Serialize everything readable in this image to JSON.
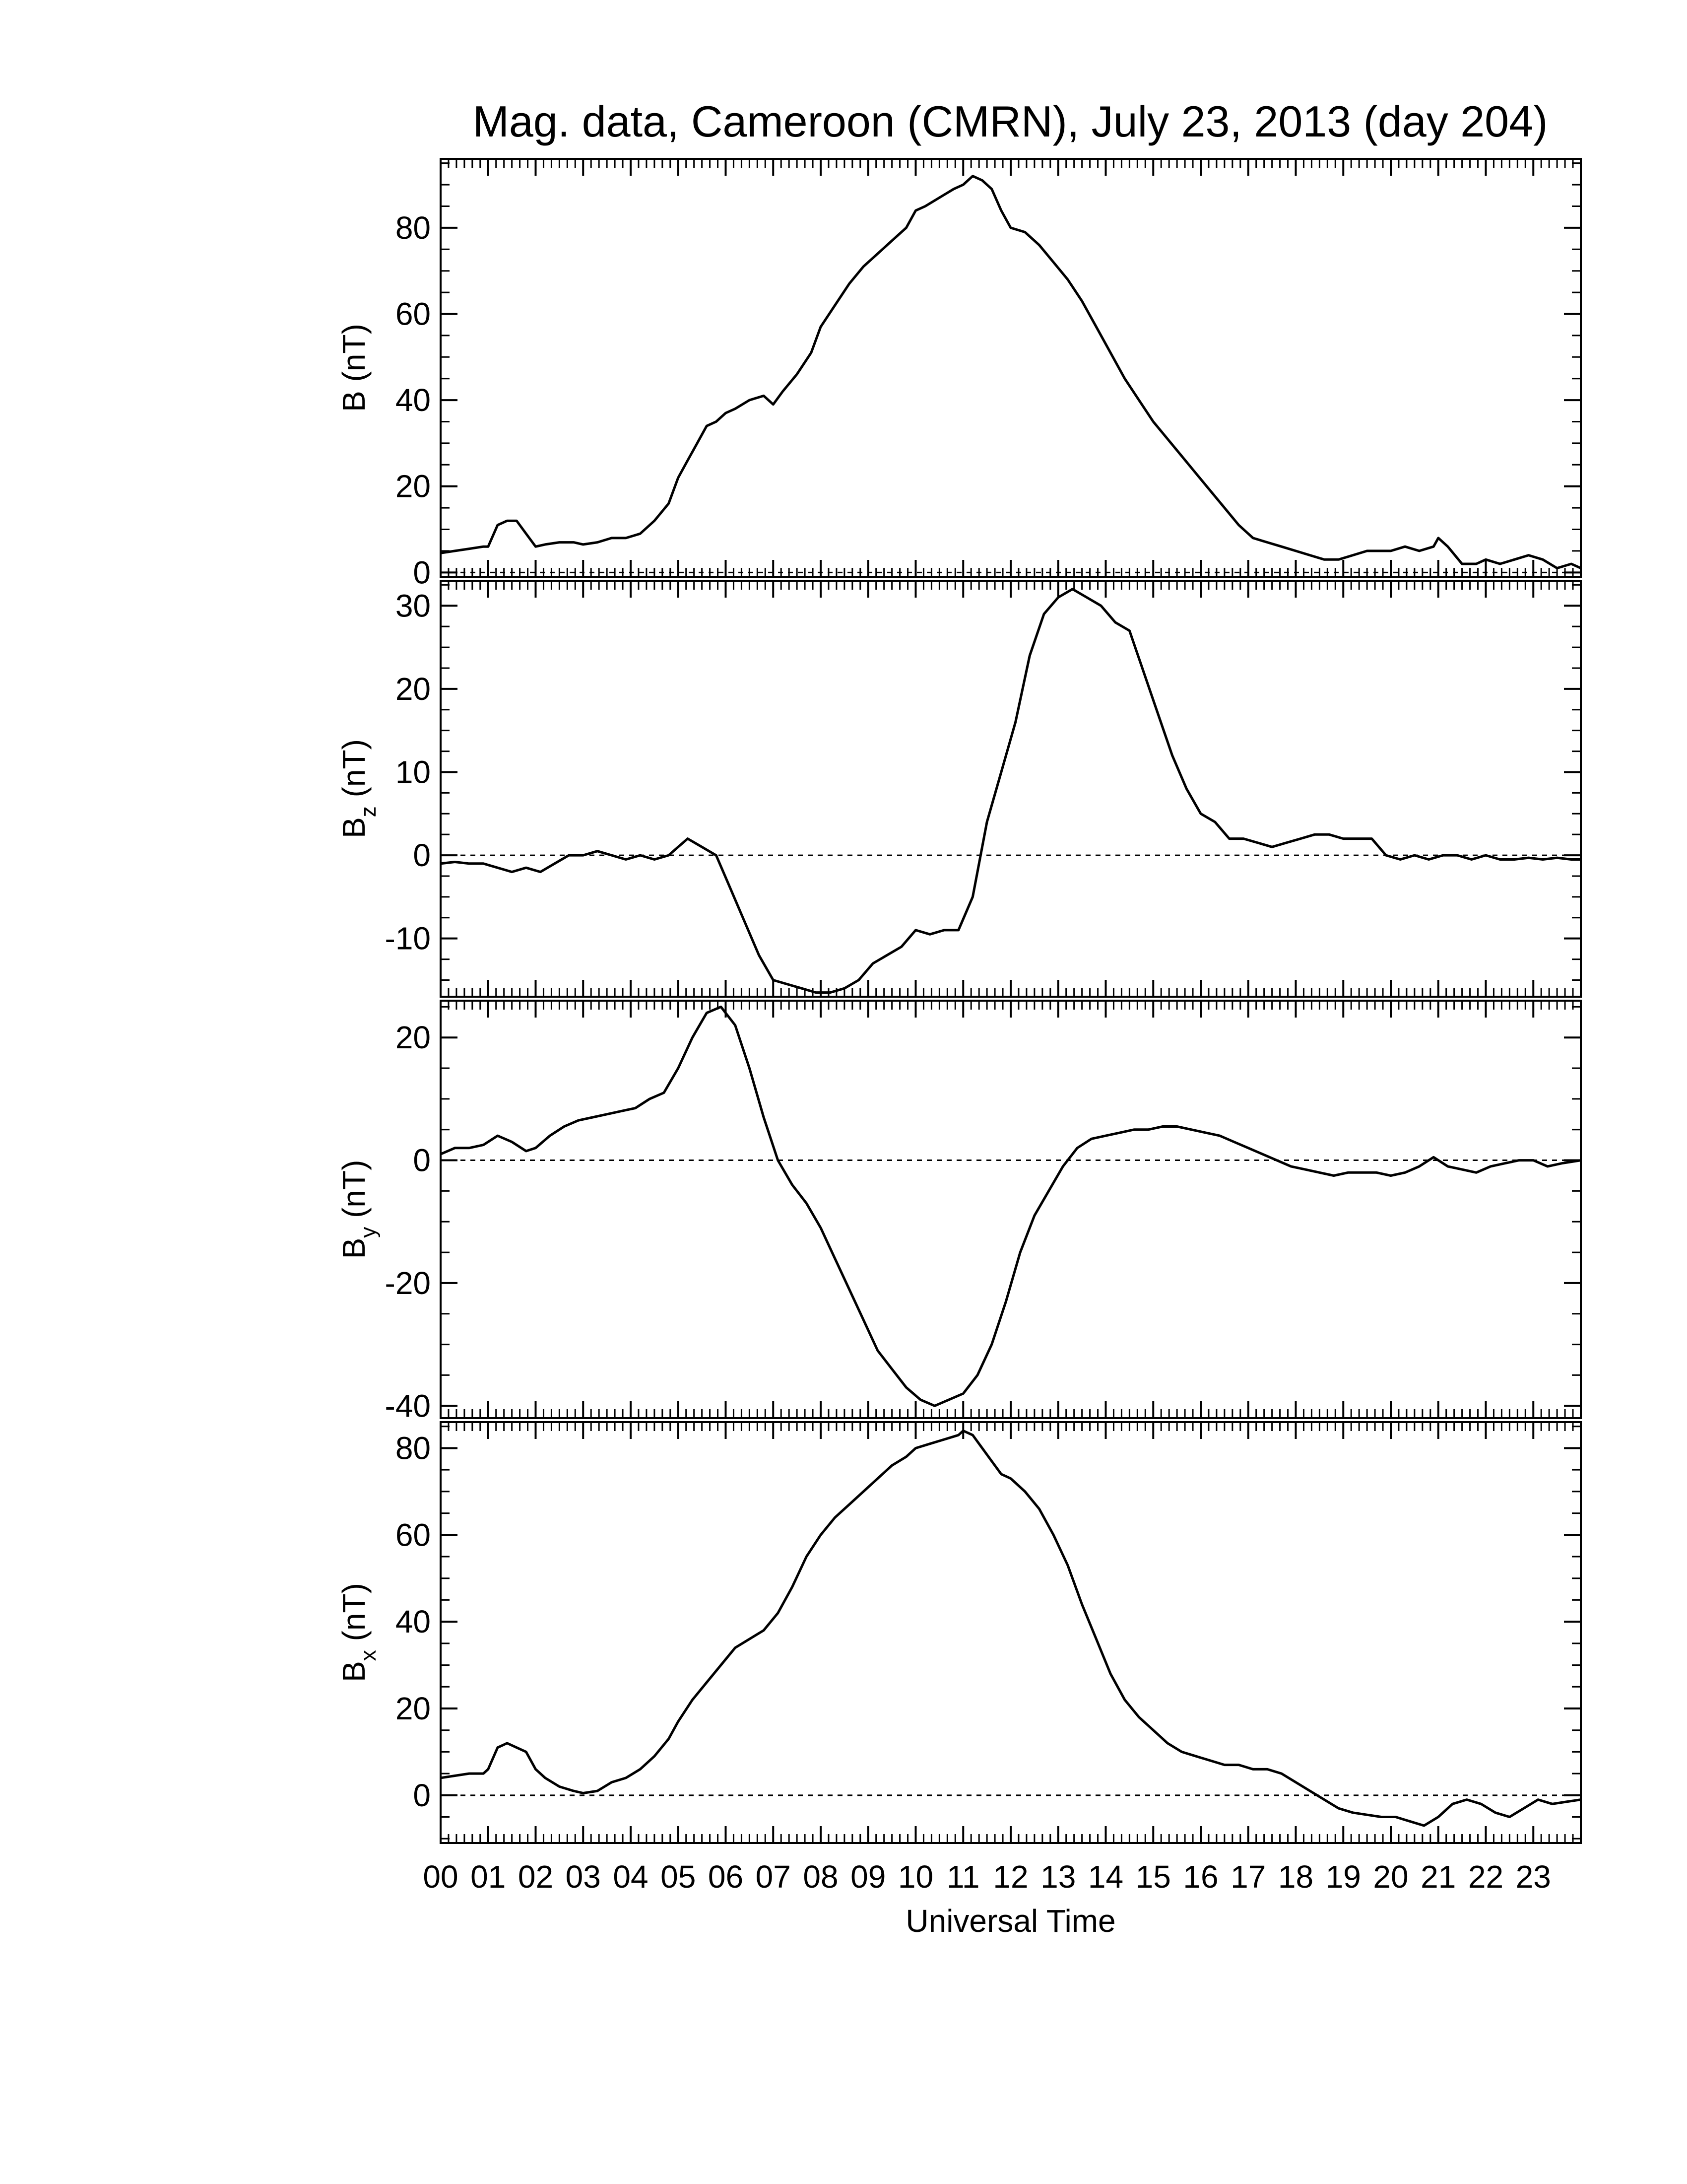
{
  "title": "Mag. data, Cameroon (CMRN), July 23, 2013 (day 204)",
  "chart_data": [
    {
      "type": "line",
      "title": "Mag. data, Cameroon (CMRN), July 23, 2013 (day 204)",
      "xlabel": "Universal Time",
      "ylabel": "B (nT)",
      "ylabel_main": "B",
      "ylabel_sub": "",
      "ylabel_unit": "(nT)",
      "xlim": [
        0,
        24
      ],
      "ylim": [
        -1,
        96
      ],
      "yticks": [
        0,
        20,
        40,
        60,
        80
      ],
      "ytick_labels": [
        "0",
        "20",
        "40",
        "60",
        "80"
      ],
      "zero_line": true,
      "series": [
        {
          "x": [
            0.0,
            0.3,
            0.6,
            0.9,
            1.0,
            1.2,
            1.4,
            1.6,
            1.8,
            2.0,
            2.2,
            2.5,
            2.8,
            3.0,
            3.3,
            3.6,
            3.9,
            4.2,
            4.5,
            4.8,
            5.0,
            5.2,
            5.4,
            5.6,
            5.8,
            6.0,
            6.2,
            6.5,
            6.8,
            7.0,
            7.2,
            7.5,
            7.8,
            8.0,
            8.3,
            8.6,
            8.9,
            9.2,
            9.5,
            9.8,
            10.0,
            10.2,
            10.5,
            10.8,
            11.0,
            11.2,
            11.4,
            11.6,
            11.8,
            12.0,
            12.3,
            12.6,
            12.9,
            13.2,
            13.5,
            13.8,
            14.1,
            14.4,
            14.7,
            15.0,
            15.3,
            15.6,
            15.9,
            16.2,
            16.5,
            16.8,
            17.1,
            17.4,
            17.7,
            18.0,
            18.3,
            18.6,
            18.9,
            19.2,
            19.5,
            19.8,
            20.0,
            20.3,
            20.6,
            20.9,
            21.0,
            21.2,
            21.5,
            21.8,
            22.0,
            22.3,
            22.6,
            22.9,
            23.2,
            23.5,
            23.8,
            24.0
          ],
          "values": [
            4.5,
            5,
            5.5,
            6,
            6,
            11,
            12,
            12,
            9,
            6,
            6.5,
            7,
            7,
            6.5,
            7,
            8,
            8,
            9,
            12,
            16,
            22,
            26,
            30,
            34,
            35,
            37,
            38,
            40,
            41,
            39,
            42,
            46,
            51,
            57,
            62,
            67,
            71,
            74,
            77,
            80,
            84,
            85,
            87,
            89,
            90,
            92,
            91,
            89,
            84,
            80,
            79,
            76,
            72,
            68,
            63,
            57,
            51,
            45,
            40,
            35,
            31,
            27,
            23,
            19,
            15,
            11,
            8,
            7,
            6,
            5,
            4,
            3,
            3,
            4,
            5,
            5,
            5,
            6,
            5,
            6,
            8,
            6,
            2,
            2,
            3,
            2,
            3,
            4,
            3,
            1,
            2,
            1
          ]
        }
      ]
    },
    {
      "type": "line",
      "ylabel": "B_z (nT)",
      "ylabel_main": "B",
      "ylabel_sub": "z",
      "ylabel_unit": "(nT)",
      "xlim": [
        0,
        24
      ],
      "ylim": [
        -17,
        33
      ],
      "yticks": [
        -10,
        0,
        10,
        20,
        30
      ],
      "ytick_labels": [
        "-10",
        "0",
        "10",
        "20",
        "30"
      ],
      "zero_line": true,
      "series": [
        {
          "x": [
            0.0,
            0.3,
            0.6,
            0.9,
            1.2,
            1.5,
            1.8,
            2.1,
            2.4,
            2.7,
            3.0,
            3.3,
            3.6,
            3.9,
            4.2,
            4.5,
            4.8,
            5.0,
            5.2,
            5.5,
            5.8,
            6.1,
            6.4,
            6.7,
            7.0,
            7.3,
            7.6,
            7.9,
            8.2,
            8.5,
            8.8,
            9.1,
            9.4,
            9.7,
            10.0,
            10.3,
            10.6,
            10.9,
            11.2,
            11.5,
            11.8,
            12.1,
            12.4,
            12.7,
            13.0,
            13.3,
            13.6,
            13.9,
            14.2,
            14.5,
            14.8,
            15.1,
            15.4,
            15.7,
            16.0,
            16.3,
            16.6,
            16.9,
            17.2,
            17.5,
            17.8,
            18.1,
            18.4,
            18.7,
            19.0,
            19.3,
            19.6,
            19.9,
            20.2,
            20.5,
            20.8,
            21.1,
            21.4,
            21.7,
            22.0,
            22.3,
            22.6,
            22.9,
            23.2,
            23.5,
            23.8,
            24.0
          ],
          "values": [
            -1,
            -0.8,
            -1,
            -1,
            -1.5,
            -2,
            -1.5,
            -2,
            -1,
            0,
            0,
            0.5,
            0,
            -0.5,
            0,
            -0.5,
            0,
            1,
            2,
            1,
            0,
            -4,
            -8,
            -12,
            -15,
            -15.5,
            -16,
            -16.5,
            -16.5,
            -16,
            -15,
            -13,
            -12,
            -11,
            -9,
            -9.5,
            -9,
            -9,
            -5,
            4,
            10,
            16,
            24,
            29,
            31,
            32,
            31,
            30,
            28,
            27,
            22,
            17,
            12,
            8,
            5,
            4,
            2,
            2,
            1.5,
            1,
            1.5,
            2,
            2.5,
            2.5,
            2,
            2,
            2,
            0,
            -0.5,
            0,
            -0.5,
            0,
            0,
            -0.5,
            0,
            -0.5,
            -0.5,
            -0.3,
            -0.5,
            -0.3,
            -0.5,
            -0.5
          ]
        }
      ]
    },
    {
      "type": "line",
      "ylabel": "B_y (nT)",
      "ylabel_main": "B",
      "ylabel_sub": "y",
      "ylabel_unit": "(nT)",
      "xlim": [
        0,
        24
      ],
      "ylim": [
        -42,
        26
      ],
      "yticks": [
        -40,
        -20,
        0,
        20
      ],
      "ytick_labels": [
        "-40",
        "-20",
        "0",
        "20"
      ],
      "zero_line": true,
      "series": [
        {
          "x": [
            0.0,
            0.3,
            0.6,
            0.9,
            1.2,
            1.5,
            1.8,
            2.0,
            2.3,
            2.6,
            2.9,
            3.2,
            3.5,
            3.8,
            4.1,
            4.4,
            4.7,
            5.0,
            5.3,
            5.6,
            5.9,
            6.2,
            6.5,
            6.8,
            7.1,
            7.4,
            7.7,
            8.0,
            8.3,
            8.6,
            8.9,
            9.2,
            9.5,
            9.8,
            10.1,
            10.4,
            10.7,
            11.0,
            11.3,
            11.6,
            11.9,
            12.2,
            12.5,
            12.8,
            13.1,
            13.4,
            13.7,
            14.0,
            14.3,
            14.6,
            14.9,
            15.2,
            15.5,
            15.8,
            16.1,
            16.4,
            16.7,
            17.0,
            17.3,
            17.6,
            17.9,
            18.2,
            18.5,
            18.8,
            19.1,
            19.4,
            19.7,
            20.0,
            20.3,
            20.6,
            20.9,
            21.2,
            21.5,
            21.8,
            22.1,
            22.4,
            22.7,
            23.0,
            23.3,
            23.6,
            24.0
          ],
          "values": [
            1,
            2,
            2,
            2.5,
            4,
            3,
            1.5,
            2,
            4,
            5.5,
            6.5,
            7,
            7.5,
            8,
            8.5,
            10,
            11,
            15,
            20,
            24,
            25,
            22,
            15,
            7,
            0,
            -4,
            -7,
            -11,
            -16,
            -21,
            -26,
            -31,
            -34,
            -37,
            -39,
            -40,
            -39,
            -38,
            -35,
            -30,
            -23,
            -15,
            -9,
            -5,
            -1,
            2,
            3.5,
            4,
            4.5,
            5,
            5,
            5.5,
            5.5,
            5,
            4.5,
            4,
            3,
            2,
            1,
            0,
            -1,
            -1.5,
            -2,
            -2.5,
            -2,
            -2,
            -2,
            -2.5,
            -2,
            -1,
            0.5,
            -1,
            -1.5,
            -2,
            -1,
            -0.5,
            0,
            0,
            -1,
            -0.5,
            0
          ]
        }
      ]
    },
    {
      "type": "line",
      "xlabel": "Universal Time",
      "ylabel": "B_x (nT)",
      "ylabel_main": "B",
      "ylabel_sub": "x",
      "ylabel_unit": "(nT)",
      "xlim": [
        0,
        24
      ],
      "ylim": [
        -11,
        86
      ],
      "yticks": [
        0,
        20,
        40,
        60,
        80
      ],
      "ytick_labels": [
        "0",
        "20",
        "40",
        "60",
        "80"
      ],
      "zero_line": true,
      "series": [
        {
          "x": [
            0.0,
            0.3,
            0.6,
            0.9,
            1.0,
            1.2,
            1.4,
            1.6,
            1.8,
            2.0,
            2.2,
            2.5,
            2.8,
            3.0,
            3.3,
            3.6,
            3.9,
            4.2,
            4.5,
            4.8,
            5.0,
            5.3,
            5.6,
            5.9,
            6.2,
            6.5,
            6.8,
            7.1,
            7.4,
            7.7,
            8.0,
            8.3,
            8.6,
            8.9,
            9.2,
            9.5,
            9.8,
            10.0,
            10.3,
            10.6,
            10.9,
            11.0,
            11.2,
            11.4,
            11.6,
            11.8,
            12.0,
            12.3,
            12.6,
            12.9,
            13.2,
            13.5,
            13.8,
            14.1,
            14.4,
            14.7,
            15.0,
            15.3,
            15.6,
            15.9,
            16.2,
            16.5,
            16.8,
            17.1,
            17.4,
            17.7,
            18.0,
            18.3,
            18.6,
            18.9,
            19.2,
            19.5,
            19.8,
            20.1,
            20.4,
            20.7,
            21.0,
            21.3,
            21.6,
            21.9,
            22.2,
            22.5,
            22.8,
            23.1,
            23.4,
            23.7,
            24.0
          ],
          "values": [
            4,
            4.5,
            5,
            5,
            6,
            11,
            12,
            11,
            10,
            6,
            4,
            2,
            1,
            0.5,
            1,
            3,
            4,
            6,
            9,
            13,
            17,
            22,
            26,
            30,
            34,
            36,
            38,
            42,
            48,
            55,
            60,
            64,
            67,
            70,
            73,
            76,
            78,
            80,
            81,
            82,
            83,
            84,
            83,
            80,
            77,
            74,
            73,
            70,
            66,
            60,
            53,
            44,
            36,
            28,
            22,
            18,
            15,
            12,
            10,
            9,
            8,
            7,
            7,
            6,
            6,
            5,
            3,
            1,
            -1,
            -3,
            -4,
            -4.5,
            -5,
            -5,
            -6,
            -7,
            -5,
            -2,
            -1,
            -2,
            -4,
            -5,
            -3,
            -1,
            -2,
            -1.5,
            -1
          ]
        }
      ]
    }
  ],
  "xaxis": {
    "label": "Universal Time",
    "ticks": [
      0,
      1,
      2,
      3,
      4,
      5,
      6,
      7,
      8,
      9,
      10,
      11,
      12,
      13,
      14,
      15,
      16,
      17,
      18,
      19,
      20,
      21,
      22,
      23
    ],
    "tick_labels": [
      "00",
      "01",
      "02",
      "03",
      "04",
      "05",
      "06",
      "07",
      "08",
      "09",
      "10",
      "11",
      "12",
      "13",
      "14",
      "15",
      "16",
      "17",
      "18",
      "19",
      "20",
      "21",
      "22",
      "23"
    ]
  }
}
